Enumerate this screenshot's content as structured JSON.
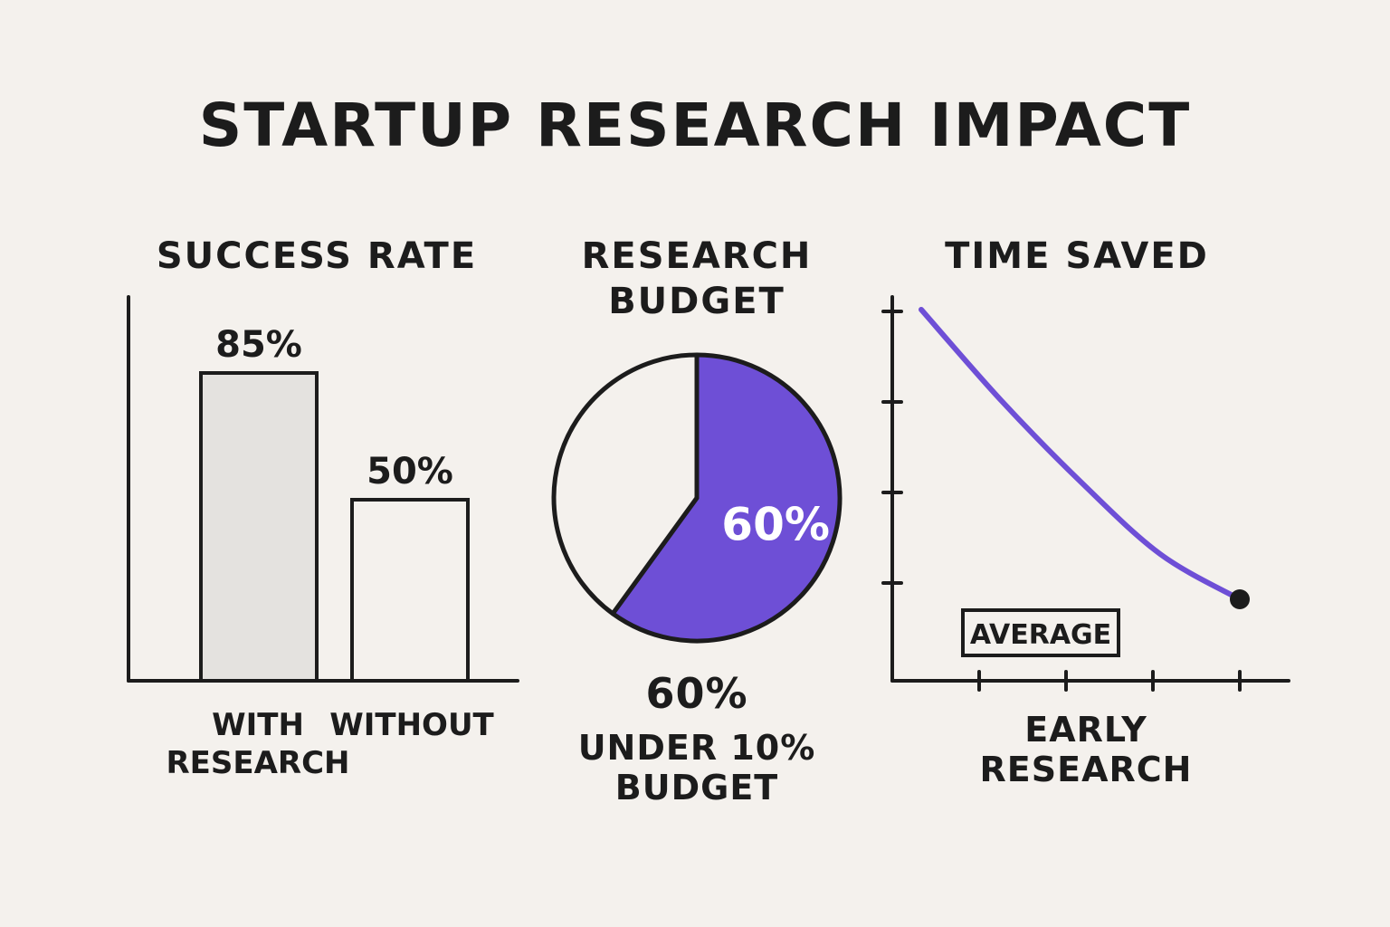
{
  "title": "STARTUP RESEARCH IMPACT",
  "colors": {
    "purple": "#6e4fd6",
    "ink": "#1c1c1c",
    "bar_fill": "#e4e2df",
    "paper": "#f4f1ed"
  },
  "chart_data": [
    {
      "type": "bar",
      "title": "SUCCESS RATE",
      "categories": [
        "WITH RESEARCH",
        "WITHOUT"
      ],
      "values": [
        85,
        50
      ],
      "value_labels": [
        "85%",
        "50%"
      ],
      "ylim": [
        0,
        100
      ]
    },
    {
      "type": "pie",
      "title_lines": [
        "RESEARCH",
        "BUDGET"
      ],
      "slices": [
        {
          "label": "60%",
          "value": 60,
          "color": "#6e4fd6"
        },
        {
          "label": "",
          "value": 40,
          "color": "#f4f1ed"
        }
      ],
      "caption_value": "60%",
      "caption_lines": [
        "UNDER 10%",
        "BUDGET"
      ]
    },
    {
      "type": "line",
      "title": "TIME SAVED",
      "xlabel_lines": [
        "EARLY",
        "RESEARCH"
      ],
      "annotation": "AVERAGE",
      "series": [
        {
          "x": [
            0,
            1,
            2,
            3,
            4
          ],
          "y": [
            4.1,
            3.1,
            2.2,
            1.4,
            0.9
          ]
        }
      ],
      "xlim": [
        0,
        4
      ],
      "ylim": [
        0,
        5
      ]
    }
  ]
}
